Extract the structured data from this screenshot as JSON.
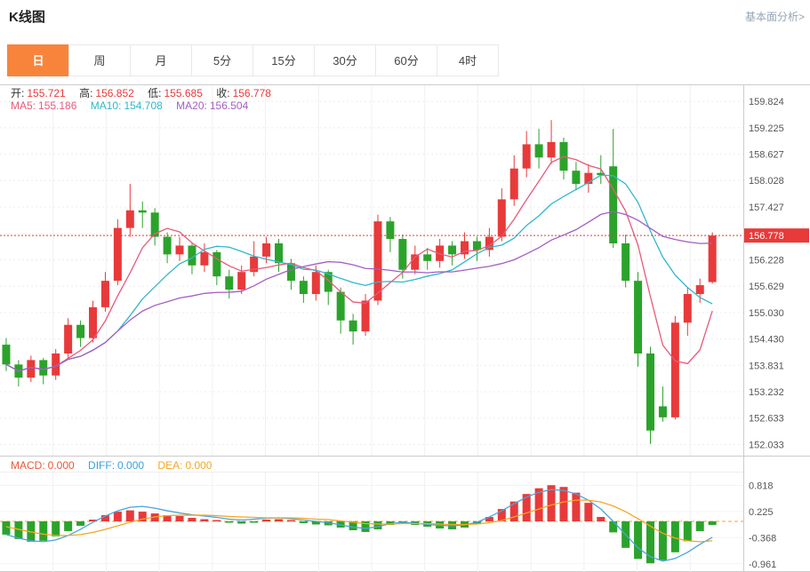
{
  "header": {
    "title": "K线图",
    "link_right": "基本面分析>"
  },
  "tabs": [
    {
      "label": "日",
      "active": true
    },
    {
      "label": "周",
      "active": false
    },
    {
      "label": "月",
      "active": false
    },
    {
      "label": "5分",
      "active": false
    },
    {
      "label": "15分",
      "active": false
    },
    {
      "label": "30分",
      "active": false
    },
    {
      "label": "60分",
      "active": false
    },
    {
      "label": "4时",
      "active": false
    }
  ],
  "overlay": {
    "ohlc": [
      {
        "label": "开:",
        "value": "155.721"
      },
      {
        "label": "高:",
        "value": "156.852"
      },
      {
        "label": "低:",
        "value": "155.685"
      },
      {
        "label": "收:",
        "value": "156.778"
      }
    ],
    "ma": [
      {
        "label": "MA5:",
        "value": "155.186",
        "color": "#e85a7a"
      },
      {
        "label": "MA10:",
        "value": "154.708",
        "color": "#2fb8cc"
      },
      {
        "label": "MA20:",
        "value": "156.504",
        "color": "#a35ec2"
      }
    ]
  },
  "macd_legend": [
    {
      "label": "MACD:",
      "value": "0.000",
      "color": "#e8593a"
    },
    {
      "label": "DIFF:",
      "value": "0.000",
      "color": "#3aa0dc"
    },
    {
      "label": "DEA:",
      "value": "0.000",
      "color": "#f5a623"
    }
  ],
  "colors": {
    "up": "#e83a3a",
    "down": "#2ba32b",
    "ma5": "#e85a7a",
    "ma10": "#2fb8cc",
    "ma20": "#a35ec2",
    "diff": "#4aa3df",
    "dea": "#f5a623",
    "price": "#e83a3a",
    "grid": "#f0f0f0",
    "axis_text": "#555555",
    "border": "#cccccc"
  },
  "chart_data": [
    {
      "type": "candlestick",
      "title": "K线图 (日)",
      "legend": [
        "MA5",
        "MA10",
        "MA20"
      ],
      "ylim": [
        151.78,
        160.21
      ],
      "slots": 60,
      "y_ticks": [
        "159.824",
        "159.225",
        "158.627",
        "158.028",
        "157.427",
        "156.228",
        "155.629",
        "155.030",
        "154.430",
        "153.831",
        "153.232",
        "152.633",
        "152.033"
      ],
      "price_line": 156.778,
      "price_label": "156.778",
      "candles": [
        [
          154.3,
          154.45,
          153.7,
          153.85
        ],
        [
          153.85,
          153.95,
          153.35,
          153.55
        ],
        [
          153.55,
          154.05,
          153.45,
          153.95
        ],
        [
          153.95,
          154.0,
          153.4,
          153.6
        ],
        [
          153.6,
          154.2,
          153.5,
          154.1
        ],
        [
          154.1,
          154.9,
          154.0,
          154.75
        ],
        [
          154.75,
          154.85,
          154.25,
          154.45
        ],
        [
          154.45,
          155.3,
          154.35,
          155.15
        ],
        [
          155.15,
          155.95,
          155.05,
          155.75
        ],
        [
          155.75,
          157.15,
          155.65,
          156.95
        ],
        [
          156.95,
          157.95,
          156.75,
          157.35
        ],
        [
          157.35,
          157.55,
          156.95,
          157.3
        ],
        [
          157.3,
          157.4,
          156.55,
          156.75
        ],
        [
          156.75,
          156.85,
          156.15,
          156.35
        ],
        [
          156.35,
          156.75,
          156.2,
          156.55
        ],
        [
          156.55,
          156.6,
          155.9,
          156.1
        ],
        [
          156.1,
          156.6,
          155.95,
          156.4
        ],
        [
          156.4,
          156.45,
          155.65,
          155.85
        ],
        [
          155.85,
          156.0,
          155.35,
          155.55
        ],
        [
          155.55,
          156.1,
          155.45,
          155.95
        ],
        [
          155.95,
          156.65,
          155.85,
          156.3
        ],
        [
          156.3,
          156.75,
          156.15,
          156.6
        ],
        [
          156.6,
          156.7,
          155.95,
          156.15
        ],
        [
          156.15,
          156.25,
          155.55,
          155.75
        ],
        [
          155.75,
          155.85,
          155.25,
          155.45
        ],
        [
          155.45,
          156.1,
          155.3,
          155.95
        ],
        [
          155.95,
          156.0,
          155.2,
          155.5
        ],
        [
          155.5,
          155.6,
          154.55,
          154.85
        ],
        [
          154.85,
          155.0,
          154.3,
          154.6
        ],
        [
          154.6,
          155.45,
          154.5,
          155.3
        ],
        [
          155.3,
          157.25,
          155.2,
          157.1
        ],
        [
          157.1,
          157.2,
          156.4,
          156.7
        ],
        [
          156.7,
          156.8,
          155.8,
          156.0
        ],
        [
          156.0,
          156.55,
          155.9,
          156.35
        ],
        [
          156.35,
          156.5,
          156.0,
          156.2
        ],
        [
          156.2,
          156.7,
          156.05,
          156.55
        ],
        [
          156.55,
          156.65,
          156.1,
          156.35
        ],
        [
          156.35,
          156.85,
          156.25,
          156.65
        ],
        [
          156.65,
          156.75,
          156.2,
          156.45
        ],
        [
          156.45,
          156.95,
          156.3,
          156.75
        ],
        [
          156.75,
          157.85,
          156.65,
          157.6
        ],
        [
          157.6,
          158.6,
          157.45,
          158.3
        ],
        [
          158.3,
          159.15,
          158.1,
          158.85
        ],
        [
          158.85,
          159.2,
          158.3,
          158.55
        ],
        [
          158.55,
          159.4,
          158.4,
          158.9
        ],
        [
          158.9,
          159.0,
          158.05,
          158.25
        ],
        [
          158.25,
          158.45,
          157.8,
          157.95
        ],
        [
          157.95,
          158.4,
          157.75,
          158.2
        ],
        [
          158.2,
          158.6,
          157.95,
          158.15
        ],
        [
          158.35,
          159.2,
          156.5,
          156.6
        ],
        [
          156.6,
          156.8,
          155.6,
          155.75
        ],
        [
          155.75,
          155.95,
          153.8,
          154.1
        ],
        [
          154.1,
          154.25,
          152.05,
          152.35
        ],
        [
          152.9,
          153.35,
          152.55,
          152.65
        ],
        [
          152.65,
          154.95,
          152.6,
          154.8
        ],
        [
          154.8,
          155.6,
          154.5,
          155.45
        ],
        [
          155.45,
          155.8,
          155.25,
          155.65
        ],
        [
          155.721,
          156.852,
          155.685,
          156.778
        ]
      ]
    },
    {
      "type": "bar",
      "title": "MACD",
      "legend": [
        "MACD",
        "DIFF",
        "DEA"
      ],
      "y_ticks": [
        "0.818",
        "0.225",
        "-0.368",
        "-0.961"
      ],
      "hist": [
        -0.3,
        -0.4,
        -0.46,
        -0.44,
        -0.34,
        -0.22,
        -0.1,
        0.04,
        0.14,
        0.22,
        0.25,
        0.22,
        0.18,
        0.14,
        0.12,
        0.08,
        0.05,
        0.03,
        -0.03,
        -0.05,
        -0.03,
        0.04,
        0.05,
        0.03,
        -0.04,
        -0.07,
        -0.09,
        -0.14,
        -0.2,
        -0.24,
        -0.18,
        -0.08,
        -0.05,
        -0.08,
        -0.12,
        -0.16,
        -0.18,
        -0.14,
        -0.06,
        0.1,
        0.28,
        0.45,
        0.62,
        0.75,
        0.82,
        0.78,
        0.65,
        0.42,
        0.1,
        -0.25,
        -0.6,
        -0.85,
        -0.95,
        -0.88,
        -0.7,
        -0.45,
        -0.22,
        -0.08
      ],
      "diff": [
        -0.3,
        -0.38,
        -0.44,
        -0.46,
        -0.42,
        -0.32,
        -0.18,
        -0.02,
        0.12,
        0.24,
        0.32,
        0.34,
        0.3,
        0.24,
        0.19,
        0.15,
        0.12,
        0.09,
        0.05,
        0.03,
        0.05,
        0.07,
        0.08,
        0.06,
        0.03,
        0.0,
        -0.03,
        -0.08,
        -0.13,
        -0.16,
        -0.12,
        -0.05,
        -0.02,
        -0.04,
        -0.07,
        -0.09,
        -0.1,
        -0.08,
        -0.02,
        0.1,
        0.24,
        0.4,
        0.55,
        0.66,
        0.72,
        0.7,
        0.62,
        0.48,
        0.28,
        0.0,
        -0.3,
        -0.6,
        -0.8,
        -0.9,
        -0.84,
        -0.7,
        -0.52,
        -0.36
      ],
      "dea": [
        -0.12,
        -0.18,
        -0.24,
        -0.29,
        -0.32,
        -0.32,
        -0.3,
        -0.25,
        -0.18,
        -0.1,
        -0.02,
        0.05,
        0.1,
        0.13,
        0.14,
        0.14,
        0.14,
        0.13,
        0.11,
        0.1,
        0.09,
        0.08,
        0.08,
        0.08,
        0.07,
        0.05,
        0.04,
        0.01,
        -0.02,
        -0.05,
        -0.06,
        -0.06,
        -0.05,
        -0.05,
        -0.05,
        -0.06,
        -0.07,
        -0.07,
        -0.06,
        -0.03,
        0.02,
        0.1,
        0.19,
        0.28,
        0.37,
        0.44,
        0.48,
        0.48,
        0.44,
        0.35,
        0.22,
        0.06,
        -0.11,
        -0.27,
        -0.38,
        -0.44,
        -0.46,
        -0.44
      ]
    }
  ]
}
